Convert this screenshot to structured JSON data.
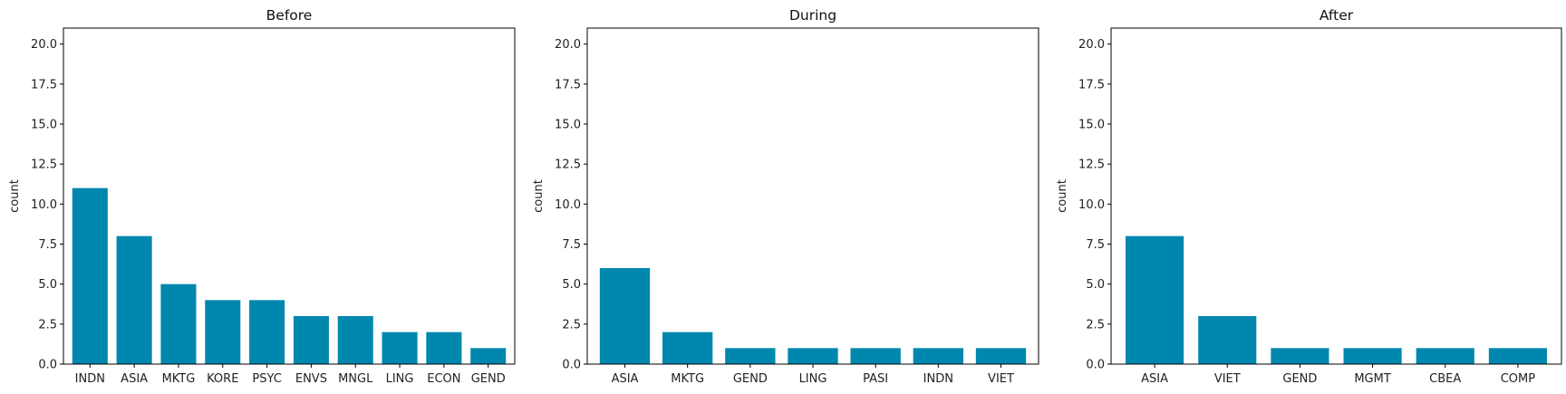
{
  "chart_data": [
    {
      "type": "bar",
      "title": "Before",
      "xlabel": "",
      "ylabel": "count",
      "categories": [
        "INDN",
        "ASIA",
        "MKTG",
        "KORE",
        "PSYC",
        "ENVS",
        "MNGL",
        "LING",
        "ECON",
        "GEND"
      ],
      "values": [
        11,
        8,
        5,
        4,
        4,
        3,
        3,
        2,
        2,
        1
      ],
      "ylim": [
        0,
        21
      ],
      "yticks": [
        0.0,
        2.5,
        5.0,
        7.5,
        10.0,
        12.5,
        15.0,
        17.5,
        20.0
      ],
      "ytick_labels": [
        "0.0",
        "2.5",
        "5.0",
        "7.5",
        "10.0",
        "12.5",
        "15.0",
        "17.5",
        "20.0"
      ],
      "grid": false,
      "bar_color": "#0087ae"
    },
    {
      "type": "bar",
      "title": "During",
      "xlabel": "",
      "ylabel": "count",
      "categories": [
        "ASIA",
        "MKTG",
        "GEND",
        "LING",
        "PASI",
        "INDN",
        "VIET"
      ],
      "values": [
        6,
        2,
        1,
        1,
        1,
        1,
        1
      ],
      "ylim": [
        0,
        21
      ],
      "yticks": [
        0.0,
        2.5,
        5.0,
        7.5,
        10.0,
        12.5,
        15.0,
        17.5,
        20.0
      ],
      "ytick_labels": [
        "0.0",
        "2.5",
        "5.0",
        "7.5",
        "10.0",
        "12.5",
        "15.0",
        "17.5",
        "20.0"
      ],
      "grid": false,
      "bar_color": "#0087ae"
    },
    {
      "type": "bar",
      "title": "After",
      "xlabel": "",
      "ylabel": "count",
      "categories": [
        "ASIA",
        "VIET",
        "GEND",
        "MGMT",
        "CBEA",
        "COMP"
      ],
      "values": [
        8,
        3,
        1,
        1,
        1,
        1
      ],
      "ylim": [
        0,
        21
      ],
      "yticks": [
        0.0,
        2.5,
        5.0,
        7.5,
        10.0,
        12.5,
        15.0,
        17.5,
        20.0
      ],
      "ytick_labels": [
        "0.0",
        "2.5",
        "5.0",
        "7.5",
        "10.0",
        "12.5",
        "15.0",
        "17.5",
        "20.0"
      ],
      "grid": false,
      "bar_color": "#0087ae"
    }
  ]
}
